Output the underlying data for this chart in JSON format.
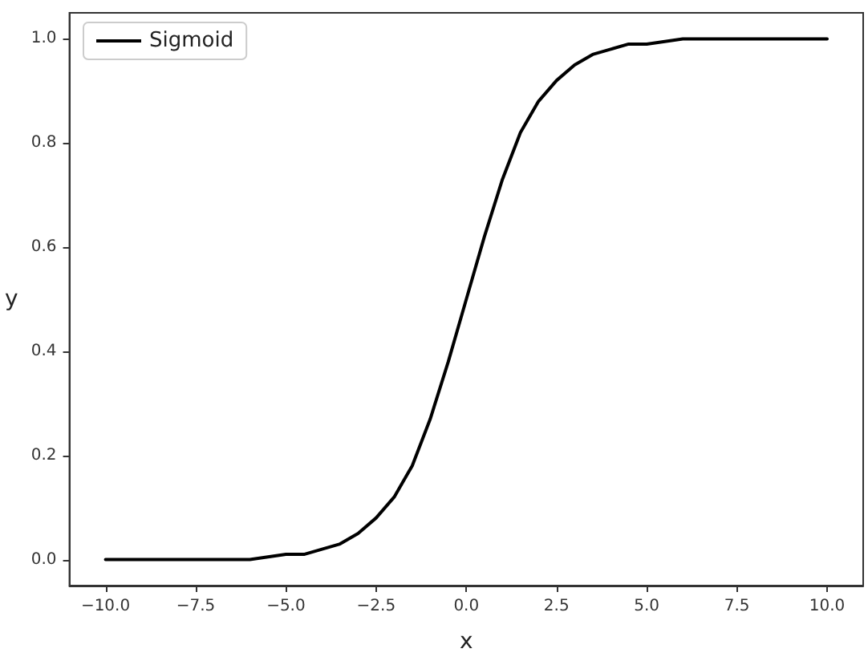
{
  "chart_data": {
    "type": "line",
    "xlabel": "x",
    "ylabel": "y",
    "legend": "top left",
    "grid": false,
    "marker": "none",
    "line_style": "solid",
    "x": [
      -10,
      -9,
      -8,
      -7,
      -6,
      -5,
      -4.5,
      -4,
      -3.5,
      -3,
      -2.5,
      -2,
      -1.5,
      -1,
      -0.5,
      0,
      0.5,
      1,
      1.5,
      2,
      2.5,
      3,
      3.5,
      4,
      4.5,
      5,
      6,
      7,
      8,
      9,
      10
    ],
    "series": [
      {
        "name": "Sigmoid",
        "color": "#000000",
        "values": [
          0.0,
          0.0,
          0.0,
          0.0,
          0.0,
          0.01,
          0.01,
          0.02,
          0.03,
          0.05,
          0.08,
          0.12,
          0.18,
          0.27,
          0.38,
          0.5,
          0.62,
          0.73,
          0.82,
          0.88,
          0.92,
          0.95,
          0.97,
          0.98,
          0.99,
          0.99,
          1.0,
          1.0,
          1.0,
          1.0,
          1.0
        ]
      }
    ],
    "xlim": [
      -11,
      11
    ],
    "xticks": [
      {
        "value": -10,
        "label": "−10.0"
      },
      {
        "value": -7.5,
        "label": "−7.5"
      },
      {
        "value": -5,
        "label": "−5.0"
      },
      {
        "value": -2.5,
        "label": "−2.5"
      },
      {
        "value": 0,
        "label": "0.0"
      },
      {
        "value": 2.5,
        "label": "2.5"
      },
      {
        "value": 5,
        "label": "5.0"
      },
      {
        "value": 7.5,
        "label": "7.5"
      },
      {
        "value": 10,
        "label": "10.0"
      }
    ],
    "ylim": [
      -0.05,
      1.05
    ],
    "yticks": [
      {
        "value": 0,
        "label": "0.0"
      },
      {
        "value": 0.2,
        "label": "0.2"
      },
      {
        "value": 0.4,
        "label": "0.4"
      },
      {
        "value": 0.6,
        "label": "0.6"
      },
      {
        "value": 0.8,
        "label": "0.8"
      },
      {
        "value": 1,
        "label": "1.0"
      }
    ]
  }
}
